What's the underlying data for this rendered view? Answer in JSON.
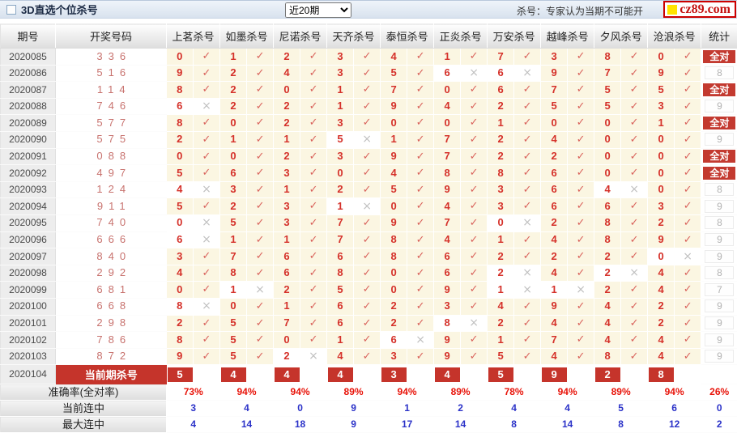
{
  "titlebar": {
    "title": "3D直选个位杀号",
    "range_selected": "近20期",
    "note": "杀号：专家认为当期不可能开",
    "logo_text": "cz89.com"
  },
  "table": {
    "col_period": "期号",
    "col_draw": "开奖号码",
    "expert_columns": [
      "上茗杀号",
      "如墨杀号",
      "尼诺杀号",
      "天齐杀号",
      "泰恒杀号",
      "正炎杀号",
      "万安杀号",
      "越峰杀号",
      "夕风杀号",
      "沧浪杀号"
    ],
    "col_stat": "统计",
    "all_correct_label": "全对",
    "check_glyph": "✓",
    "cross_glyph": "×",
    "rows": [
      {
        "period": "2020085",
        "draw": "336",
        "kills": [
          0,
          1,
          2,
          3,
          4,
          1,
          7,
          3,
          8,
          0
        ],
        "hits": [
          1,
          1,
          1,
          1,
          1,
          1,
          1,
          1,
          1,
          1
        ],
        "stat": "全对"
      },
      {
        "period": "2020086",
        "draw": "516",
        "kills": [
          9,
          2,
          4,
          3,
          5,
          6,
          6,
          9,
          7,
          9
        ],
        "hits": [
          1,
          1,
          1,
          1,
          1,
          0,
          0,
          1,
          1,
          1
        ],
        "stat": "8"
      },
      {
        "period": "2020087",
        "draw": "114",
        "kills": [
          8,
          2,
          0,
          1,
          7,
          0,
          6,
          7,
          5,
          5
        ],
        "hits": [
          1,
          1,
          1,
          1,
          1,
          1,
          1,
          1,
          1,
          1
        ],
        "stat": "全对"
      },
      {
        "period": "2020088",
        "draw": "746",
        "kills": [
          6,
          2,
          2,
          1,
          9,
          4,
          2,
          5,
          5,
          3
        ],
        "hits": [
          0,
          1,
          1,
          1,
          1,
          1,
          1,
          1,
          1,
          1
        ],
        "stat": "9"
      },
      {
        "period": "2020089",
        "draw": "577",
        "kills": [
          8,
          0,
          2,
          3,
          0,
          0,
          1,
          0,
          0,
          1
        ],
        "hits": [
          1,
          1,
          1,
          1,
          1,
          1,
          1,
          1,
          1,
          1
        ],
        "stat": "全对"
      },
      {
        "period": "2020090",
        "draw": "575",
        "kills": [
          2,
          1,
          1,
          5,
          1,
          7,
          2,
          4,
          0,
          0
        ],
        "hits": [
          1,
          1,
          1,
          0,
          1,
          1,
          1,
          1,
          1,
          1
        ],
        "stat": "9"
      },
      {
        "period": "2020091",
        "draw": "088",
        "kills": [
          0,
          0,
          2,
          3,
          9,
          7,
          2,
          2,
          0,
          0
        ],
        "hits": [
          1,
          1,
          1,
          1,
          1,
          1,
          1,
          1,
          1,
          1
        ],
        "stat": "全对"
      },
      {
        "period": "2020092",
        "draw": "497",
        "kills": [
          5,
          6,
          3,
          0,
          4,
          8,
          8,
          6,
          0,
          0
        ],
        "hits": [
          1,
          1,
          1,
          1,
          1,
          1,
          1,
          1,
          1,
          1
        ],
        "stat": "全对"
      },
      {
        "period": "2020093",
        "draw": "124",
        "kills": [
          4,
          3,
          1,
          2,
          5,
          9,
          3,
          6,
          4,
          0
        ],
        "hits": [
          0,
          1,
          1,
          1,
          1,
          1,
          1,
          1,
          0,
          1
        ],
        "stat": "8"
      },
      {
        "period": "2020094",
        "draw": "911",
        "kills": [
          5,
          2,
          3,
          1,
          0,
          4,
          3,
          6,
          6,
          3
        ],
        "hits": [
          1,
          1,
          1,
          0,
          1,
          1,
          1,
          1,
          1,
          1
        ],
        "stat": "9"
      },
      {
        "period": "2020095",
        "draw": "740",
        "kills": [
          0,
          5,
          3,
          7,
          9,
          7,
          0,
          2,
          8,
          2
        ],
        "hits": [
          0,
          1,
          1,
          1,
          1,
          1,
          0,
          1,
          1,
          1
        ],
        "stat": "8"
      },
      {
        "period": "2020096",
        "draw": "666",
        "kills": [
          6,
          1,
          1,
          7,
          8,
          4,
          1,
          4,
          8,
          9
        ],
        "hits": [
          0,
          1,
          1,
          1,
          1,
          1,
          1,
          1,
          1,
          1
        ],
        "stat": "9"
      },
      {
        "period": "2020097",
        "draw": "840",
        "kills": [
          3,
          7,
          6,
          6,
          8,
          6,
          2,
          2,
          2,
          0
        ],
        "hits": [
          1,
          1,
          1,
          1,
          1,
          1,
          1,
          1,
          1,
          0
        ],
        "stat": "9"
      },
      {
        "period": "2020098",
        "draw": "292",
        "kills": [
          4,
          8,
          6,
          8,
          0,
          6,
          2,
          4,
          2,
          4
        ],
        "hits": [
          1,
          1,
          1,
          1,
          1,
          1,
          0,
          1,
          0,
          1
        ],
        "stat": "8"
      },
      {
        "period": "2020099",
        "draw": "681",
        "kills": [
          0,
          1,
          2,
          5,
          0,
          9,
          1,
          1,
          2,
          4
        ],
        "hits": [
          1,
          0,
          1,
          1,
          1,
          1,
          0,
          0,
          1,
          1
        ],
        "stat": "7"
      },
      {
        "period": "2020100",
        "draw": "668",
        "kills": [
          8,
          0,
          1,
          6,
          2,
          3,
          4,
          9,
          4,
          2
        ],
        "hits": [
          0,
          1,
          1,
          1,
          1,
          1,
          1,
          1,
          1,
          1
        ],
        "stat": "9"
      },
      {
        "period": "2020101",
        "draw": "298",
        "kills": [
          2,
          5,
          7,
          6,
          2,
          8,
          2,
          4,
          4,
          2
        ],
        "hits": [
          1,
          1,
          1,
          1,
          1,
          0,
          1,
          1,
          1,
          1
        ],
        "stat": "9"
      },
      {
        "period": "2020102",
        "draw": "786",
        "kills": [
          8,
          5,
          0,
          1,
          6,
          9,
          1,
          7,
          4,
          4
        ],
        "hits": [
          1,
          1,
          1,
          1,
          0,
          1,
          1,
          1,
          1,
          1
        ],
        "stat": "9"
      },
      {
        "period": "2020103",
        "draw": "872",
        "kills": [
          9,
          5,
          2,
          4,
          3,
          9,
          5,
          4,
          8,
          4
        ],
        "hits": [
          1,
          1,
          0,
          1,
          1,
          1,
          1,
          1,
          1,
          1
        ],
        "stat": "9"
      }
    ],
    "current_row": {
      "period": "2020104",
      "label": "当前期杀号",
      "kills": [
        5,
        4,
        4,
        4,
        3,
        4,
        5,
        9,
        2,
        8
      ]
    },
    "summary_rows": [
      {
        "label": "准确率(全对率)",
        "values": [
          "73%",
          "94%",
          "94%",
          "89%",
          "94%",
          "89%",
          "78%",
          "94%",
          "89%",
          "94%"
        ],
        "stat": "26%",
        "style": "redv"
      },
      {
        "label": "当前连中",
        "values": [
          "3",
          "4",
          "0",
          "9",
          "1",
          "2",
          "4",
          "4",
          "5",
          "6"
        ],
        "stat": "0",
        "style": "bluev"
      },
      {
        "label": "最大连中",
        "values": [
          "4",
          "14",
          "18",
          "9",
          "17",
          "14",
          "8",
          "14",
          "8",
          "12"
        ],
        "stat": "2",
        "style": "bluev"
      }
    ]
  },
  "colors": {
    "accent_red": "#c5342b",
    "hit_bg": "#fbf6e2",
    "check": "#d9635c",
    "cross": "#c0c0c0",
    "kill_number": "#d5312a",
    "percent_red": "#e81309",
    "streak_blue": "#2b32c8",
    "logo_red": "#c51111",
    "logo_yellow": "#ffe400"
  }
}
